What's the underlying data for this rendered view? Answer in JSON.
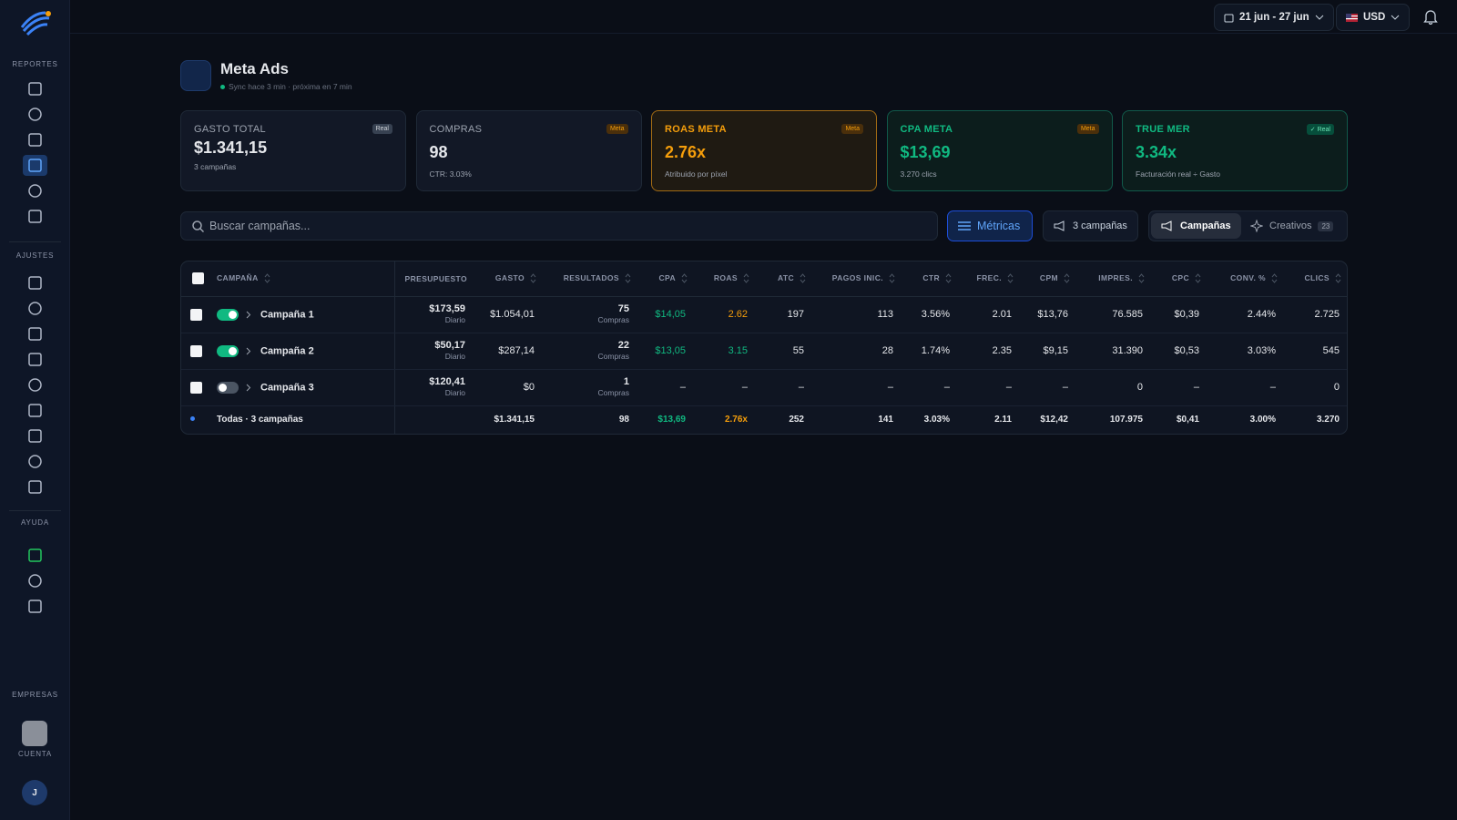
{
  "sidebar": {
    "sections": [
      "REPORTES",
      "AJUSTES",
      "AYUDA",
      "EMPRESAS",
      "CUENTA"
    ],
    "avatar": "J"
  },
  "topbar": {
    "date_range": "21 jun - 27 jun",
    "currency": "USD"
  },
  "header": {
    "title": "Meta Ads",
    "sync": "Sync hace 3 min",
    "next": "próxima en 7 min"
  },
  "kpis": [
    {
      "label": "GASTO TOTAL",
      "badge": "Real",
      "value": "$1.341,15",
      "sub": "3 campañas",
      "accent": "#e5e7eb"
    },
    {
      "label": "COMPRAS",
      "badge": "Meta",
      "value": "98",
      "sub": "CTR: 3.03%",
      "accent": "#e5e7eb"
    },
    {
      "label": "ROAS META",
      "badge": "Meta",
      "value": "2.76x",
      "sub": "Atribuido por píxel",
      "accent": "#f59e0b"
    },
    {
      "label": "CPA META",
      "badge": "Meta",
      "value": "$13,69",
      "sub": "3.270 clics",
      "accent": "#10b981"
    },
    {
      "label": "TRUE MER",
      "badge": "✓ Real",
      "value": "3.34x",
      "sub": "Facturación real ÷ Gasto",
      "accent": "#10b981"
    }
  ],
  "toolbar": {
    "search_placeholder": "Buscar campañas...",
    "metrics": "Métricas",
    "campaign_count": "3 campañas",
    "tab_campaigns": "Campañas",
    "tab_creatives": "Creativos",
    "creatives_count": "23"
  },
  "table": {
    "columns": [
      "CAMPAÑA",
      "PRESUPUESTO",
      "GASTO",
      "RESULTADOS",
      "CPA",
      "ROAS",
      "ATC",
      "PAGOS INIC.",
      "CTR",
      "FREC.",
      "CPM",
      "IMPRES.",
      "CPC",
      "CONV. %",
      "CLICS"
    ],
    "rows": [
      {
        "name": "Campaña 1",
        "active": true,
        "budget": "$173,59",
        "budget_period": "Diario",
        "spend": "$1.054,01",
        "results": "75",
        "results_label": "Compras",
        "cpa": "$14,05",
        "roas": "2.62",
        "atc": "197",
        "payments": "113",
        "ctr": "3.56%",
        "freq": "2.01",
        "cpm": "$13,76",
        "impressions": "76.585",
        "cpc": "$0,39",
        "conv": "2.44%",
        "clicks": "2.725",
        "cpa_color": "#10b981",
        "roas_color": "#f59e0b"
      },
      {
        "name": "Campaña 2",
        "active": true,
        "budget": "$50,17",
        "budget_period": "Diario",
        "spend": "$287,14",
        "results": "22",
        "results_label": "Compras",
        "cpa": "$13,05",
        "roas": "3.15",
        "atc": "55",
        "payments": "28",
        "ctr": "1.74%",
        "freq": "2.35",
        "cpm": "$9,15",
        "impressions": "31.390",
        "cpc": "$0,53",
        "conv": "3.03%",
        "clicks": "545",
        "cpa_color": "#10b981",
        "roas_color": "#10b981"
      },
      {
        "name": "Campaña 3",
        "active": false,
        "budget": "$120,41",
        "budget_period": "Diario",
        "spend": "$0",
        "results": "1",
        "results_label": "Compras",
        "cpa": "–",
        "roas": "–",
        "atc": "–",
        "payments": "–",
        "ctr": "–",
        "freq": "–",
        "cpm": "–",
        "impressions": "0",
        "cpc": "–",
        "conv": "–",
        "clicks": "0"
      }
    ],
    "total": {
      "name": "Todas · 3 campañas",
      "spend": "$1.341,15",
      "results": "98",
      "cpa": "$13,69",
      "roas": "2.76x",
      "atc": "252",
      "payments": "141",
      "ctr": "3.03%",
      "freq": "2.11",
      "cpm": "$12,42",
      "impressions": "107.975",
      "cpc": "$0,41",
      "conv": "3.00%",
      "clicks": "3.270",
      "cpa_color": "#10b981",
      "roas_color": "#f59e0b"
    }
  }
}
